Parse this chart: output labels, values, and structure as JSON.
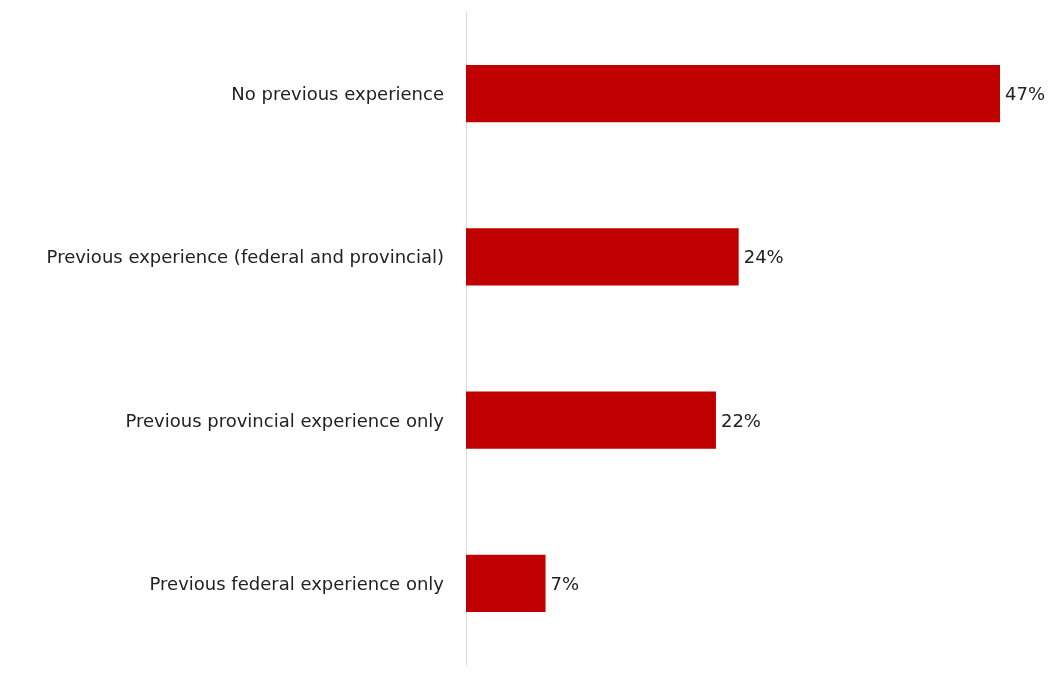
{
  "chart_data": {
    "type": "bar",
    "orientation": "horizontal",
    "categories": [
      "No previous experience",
      "Previous experience (federal and provincial)",
      "Previous provincial experience only",
      "Previous federal experience only"
    ],
    "values": [
      47,
      24,
      22,
      7
    ],
    "color": "#c00000",
    "value_labels": [
      "47%",
      "24%",
      "22%",
      "7%"
    ]
  }
}
